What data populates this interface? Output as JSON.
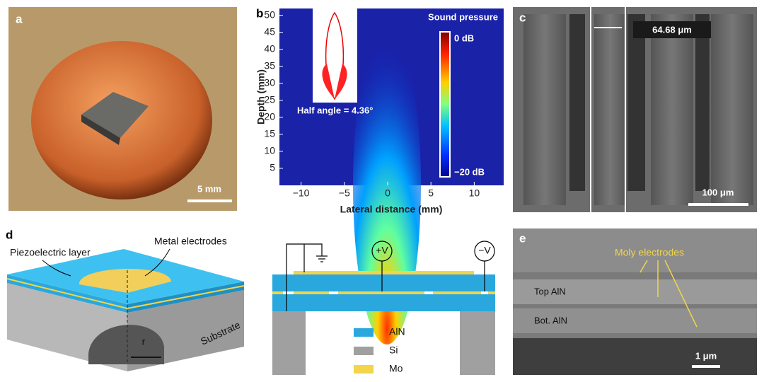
{
  "panels": {
    "a": {
      "label": "a",
      "scale_bar": "5 mm"
    },
    "b": {
      "label": "b",
      "title": "Sound pressure",
      "annotation": "Half angle = 4.36°",
      "x_label": "Lateral distance (mm)",
      "y_label": "Depth (mm)",
      "xlim": [
        -12.5,
        13.4
      ],
      "ylim": [
        0,
        52
      ],
      "xticks": [
        {
          "value": -10,
          "label": "−10"
        },
        {
          "value": -5,
          "label": "−5"
        },
        0,
        5,
        10
      ],
      "yticks": [
        5,
        10,
        15,
        20,
        25,
        30,
        35,
        40,
        45,
        50
      ],
      "colorbar_top": "0 dB",
      "colorbar_bottom": "−20 dB"
    },
    "c": {
      "label": "c",
      "measurement": "64.68 μm",
      "scale_bar": "100 μm"
    },
    "d": {
      "label": "d",
      "piezo": "Piezoelectric layer",
      "electrodes": "Metal electrodes",
      "substrate": "Substrate",
      "radius": "r",
      "plus": "+V",
      "minus": "−V",
      "legend": [
        {
          "name": "AlN",
          "color": "#2aa8de"
        },
        {
          "name": "Si",
          "color": "#a0a0a0"
        },
        {
          "name": "Mo",
          "color": "#f2d54a"
        }
      ]
    },
    "e": {
      "label": "e",
      "electrodes": "Moly electrodes",
      "top": "Top AlN",
      "bottom": "Bot. AlN",
      "scale_bar": "1 μm"
    }
  }
}
